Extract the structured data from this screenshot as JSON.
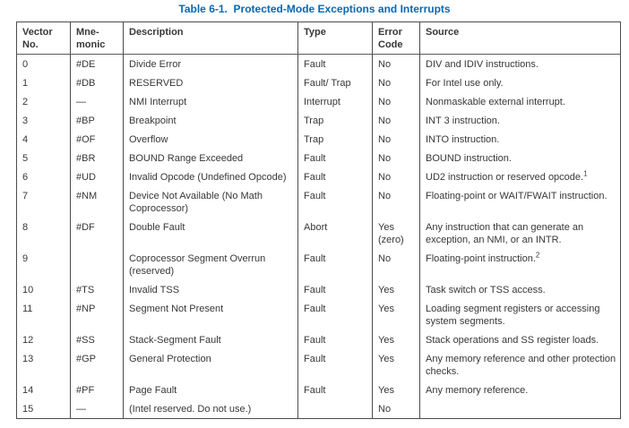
{
  "title": "Table 6-1.  Protected-Mode Exceptions and Interrupts",
  "title_color": "#0968b3",
  "columns": [
    {
      "label": "Vector\nNo."
    },
    {
      "label": "Mne-\nmonic"
    },
    {
      "label": "Description"
    },
    {
      "label": "Type"
    },
    {
      "label": "Error\nCode"
    },
    {
      "label": "Source"
    }
  ],
  "rows": [
    {
      "vector": "0",
      "mnemonic": "#DE",
      "description": "Divide Error",
      "type": "Fault",
      "error_code": "No",
      "source": "DIV and IDIV instructions."
    },
    {
      "vector": "1",
      "mnemonic": "#DB",
      "description": "RESERVED",
      "type": "Fault/ Trap",
      "error_code": "No",
      "source": "For Intel use only."
    },
    {
      "vector": "2",
      "mnemonic": "—",
      "description": "NMI Interrupt",
      "type": "Interrupt",
      "error_code": "No",
      "source": "Nonmaskable external interrupt."
    },
    {
      "vector": "3",
      "mnemonic": "#BP",
      "description": "Breakpoint",
      "type": "Trap",
      "error_code": "No",
      "source": "INT 3 instruction."
    },
    {
      "vector": "4",
      "mnemonic": "#OF",
      "description": "Overflow",
      "type": "Trap",
      "error_code": "No",
      "source": "INTO instruction."
    },
    {
      "vector": "5",
      "mnemonic": "#BR",
      "description": "BOUND Range Exceeded",
      "type": "Fault",
      "error_code": "No",
      "source": "BOUND instruction."
    },
    {
      "vector": "6",
      "mnemonic": "#UD",
      "description": "Invalid Opcode (Undefined Opcode)",
      "type": "Fault",
      "error_code": "No",
      "source": "UD2 instruction or reserved opcode.",
      "source_sup": "1"
    },
    {
      "vector": "7",
      "mnemonic": "#NM",
      "description": "Device Not Available (No Math Coprocessor)",
      "type": "Fault",
      "error_code": "No",
      "source": "Floating-point or WAIT/FWAIT instruction."
    },
    {
      "vector": "8",
      "mnemonic": "#DF",
      "description": "Double Fault",
      "type": "Abort",
      "error_code": "Yes (zero)",
      "source": "Any instruction that can generate an exception, an NMI, or an INTR."
    },
    {
      "vector": "9",
      "mnemonic": "",
      "description": "Coprocessor Segment Overrun (reserved)",
      "type": "Fault",
      "error_code": "No",
      "source": "Floating-point instruction.",
      "source_sup": "2"
    },
    {
      "vector": "10",
      "mnemonic": "#TS",
      "description": "Invalid TSS",
      "type": "Fault",
      "error_code": "Yes",
      "source": "Task switch or TSS access."
    },
    {
      "vector": "11",
      "mnemonic": "#NP",
      "description": "Segment Not Present",
      "type": "Fault",
      "error_code": "Yes",
      "source": "Loading segment registers or accessing system segments."
    },
    {
      "vector": "12",
      "mnemonic": "#SS",
      "description": "Stack-Segment Fault",
      "type": "Fault",
      "error_code": "Yes",
      "source": "Stack operations and SS register loads."
    },
    {
      "vector": "13",
      "mnemonic": "#GP",
      "description": "General Protection",
      "type": "Fault",
      "error_code": "Yes",
      "source": "Any memory reference and other protection checks."
    },
    {
      "vector": "14",
      "mnemonic": "#PF",
      "description": "Page Fault",
      "type": "Fault",
      "error_code": "Yes",
      "source": "Any memory reference."
    },
    {
      "vector": "15",
      "mnemonic": "—",
      "description": "(Intel reserved. Do not use.)",
      "type": "",
      "error_code": "No",
      "source": ""
    }
  ]
}
